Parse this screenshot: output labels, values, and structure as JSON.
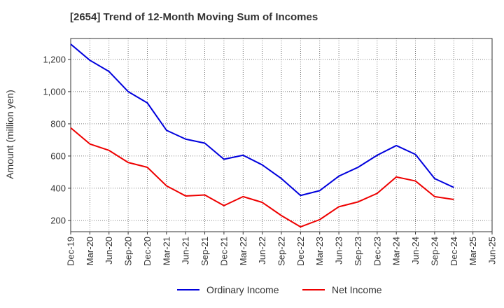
{
  "chart_data": {
    "type": "line",
    "title": "[2654]  Trend of 12-Month Moving Sum of Incomes",
    "xlabel": "",
    "ylabel": "Amount (million yen)",
    "ylim": [
      130,
      1330
    ],
    "yticks": [
      200,
      400,
      600,
      800,
      1000,
      1200
    ],
    "ytick_labels": [
      "200",
      "400",
      "600",
      "800",
      "1,000",
      "1,200"
    ],
    "xtick_labels": [
      "Dec-19",
      "Mar-20",
      "Jun-20",
      "Sep-20",
      "Dec-20",
      "Mar-21",
      "Jun-21",
      "Sep-21",
      "Dec-21",
      "Mar-22",
      "Jun-22",
      "Sep-22",
      "Dec-22",
      "Mar-23",
      "Jun-23",
      "Sep-23",
      "Dec-23",
      "Mar-24",
      "Jun-24",
      "Sep-24",
      "Dec-24",
      "Mar-25",
      "Jun-25"
    ],
    "x": [
      "Dec-19",
      "Mar-20",
      "Jun-20",
      "Sep-20",
      "Dec-20",
      "Mar-21",
      "Jun-21",
      "Sep-21",
      "Dec-21",
      "Mar-22",
      "Jun-22",
      "Sep-22",
      "Dec-22",
      "Mar-23",
      "Jun-23",
      "Sep-23",
      "Dec-23",
      "Mar-24",
      "Jun-24",
      "Sep-24",
      "Dec-24"
    ],
    "series": [
      {
        "name": "Ordinary Income",
        "color": "#0000dd",
        "values": [
          1295,
          1195,
          1125,
          1000,
          930,
          760,
          705,
          680,
          580,
          605,
          545,
          460,
          355,
          385,
          475,
          530,
          605,
          665,
          610,
          460,
          405
        ]
      },
      {
        "name": "Net Income",
        "color": "#ee0000",
        "values": [
          775,
          675,
          635,
          560,
          530,
          415,
          352,
          358,
          292,
          348,
          312,
          230,
          160,
          205,
          285,
          315,
          368,
          470,
          445,
          348,
          330
        ]
      }
    ],
    "grid": true,
    "legend": "bottom-center"
  }
}
